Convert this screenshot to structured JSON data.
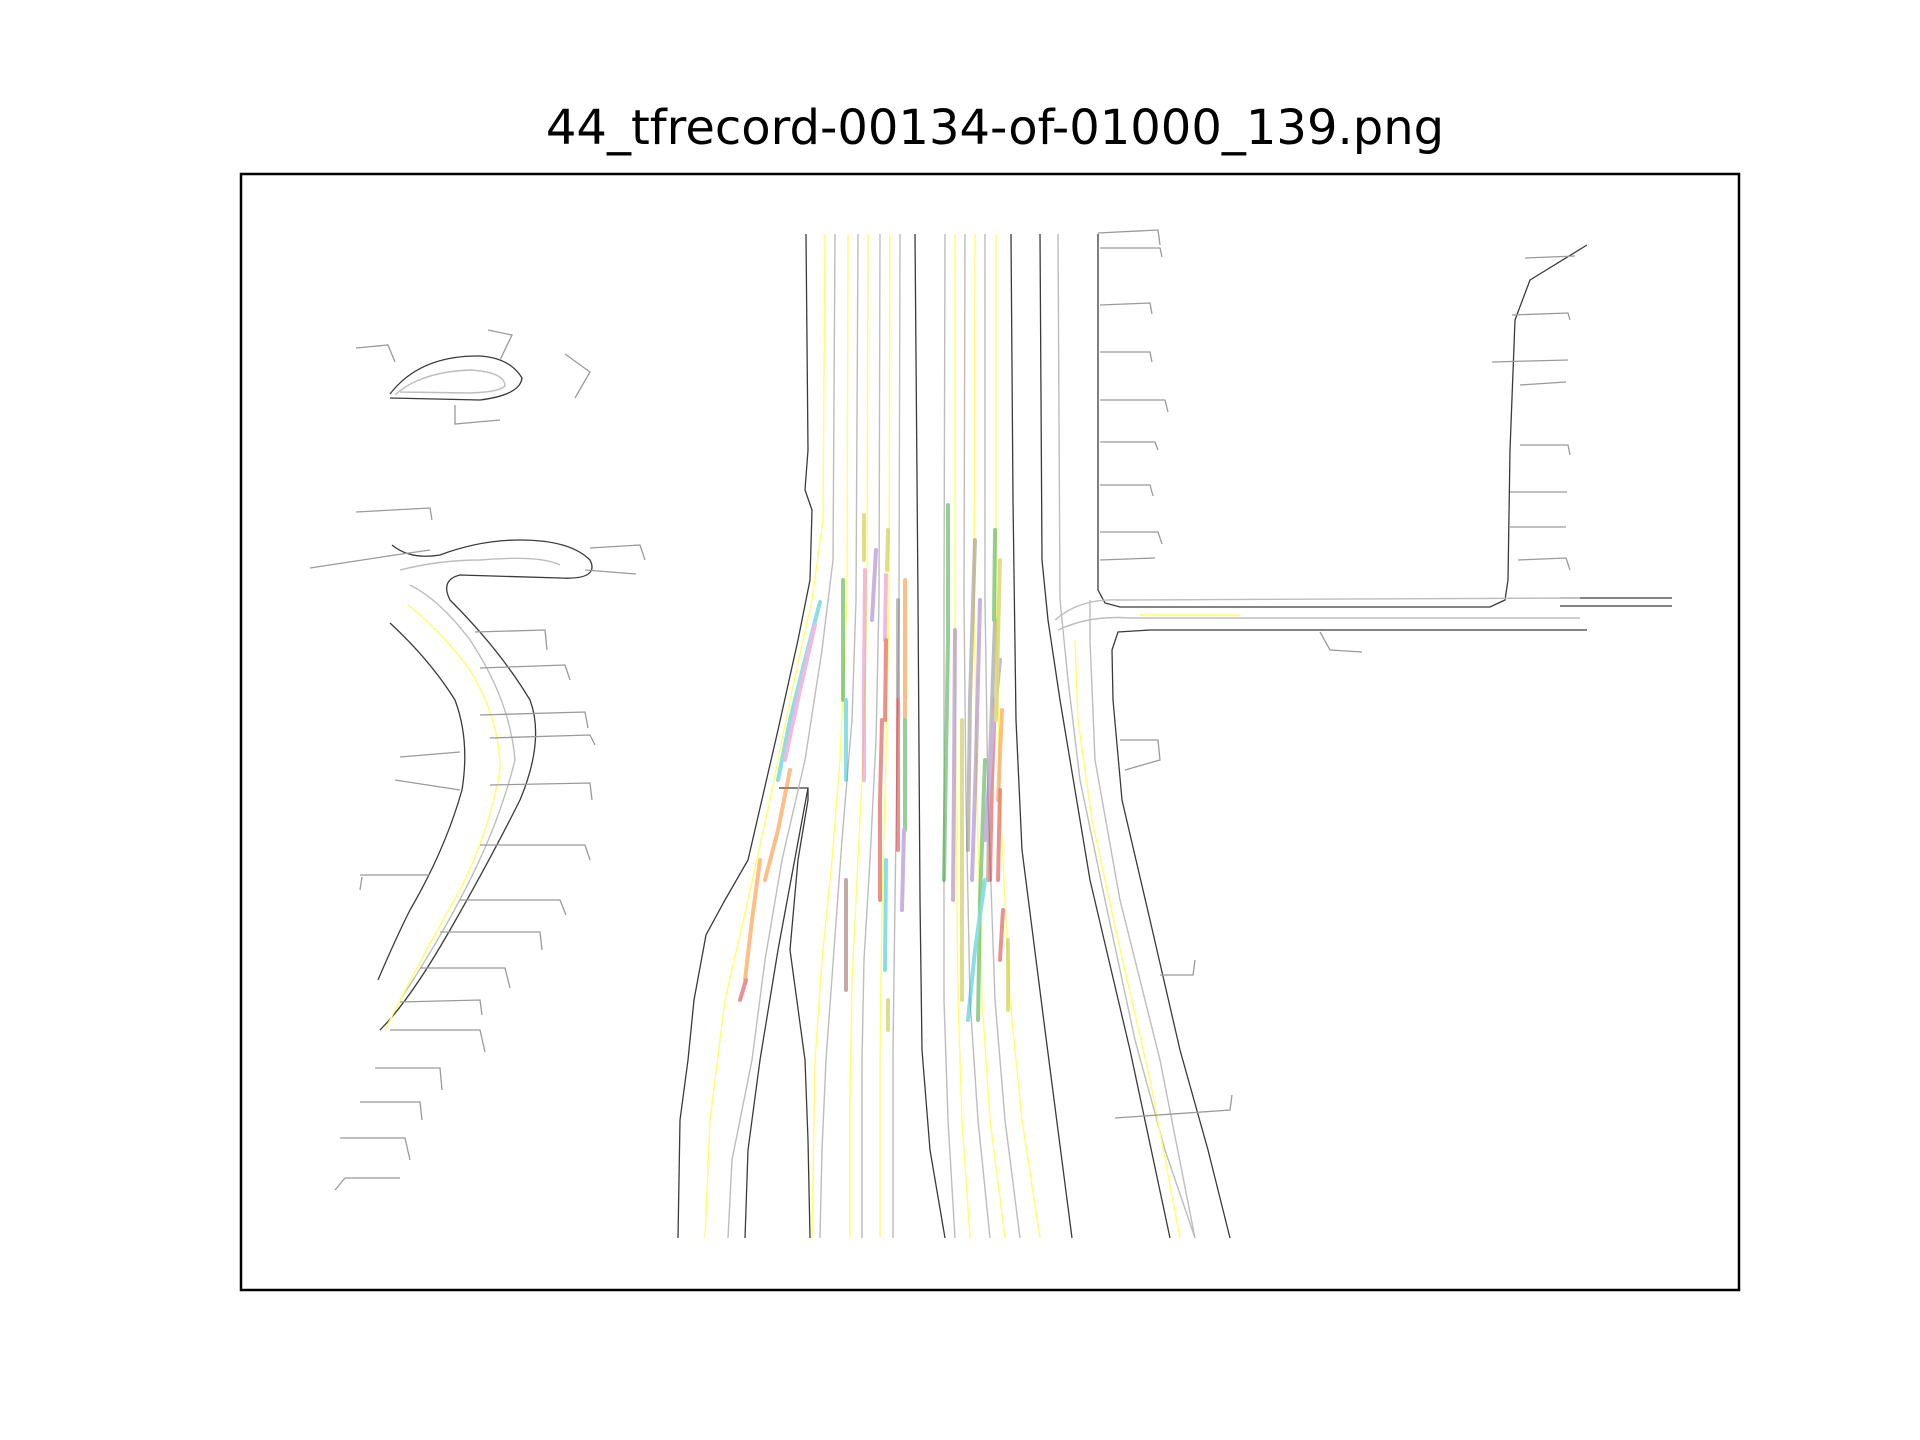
{
  "title": "44_tfrecord-00134-of-01000_139.png",
  "colors": {
    "road_edge": "#3a3a3a",
    "lane_center": "#bdbdbd",
    "road_line": "#ffff66",
    "crosswalk": "#9a9a9a",
    "frame": "#000000"
  },
  "track_colors": [
    "#1f77b4",
    "#ff7f0e",
    "#2ca02c",
    "#d62728",
    "#9467bd",
    "#8c564b",
    "#e377c2",
    "#7f7f7f",
    "#bcbd22",
    "#17becf"
  ]
}
